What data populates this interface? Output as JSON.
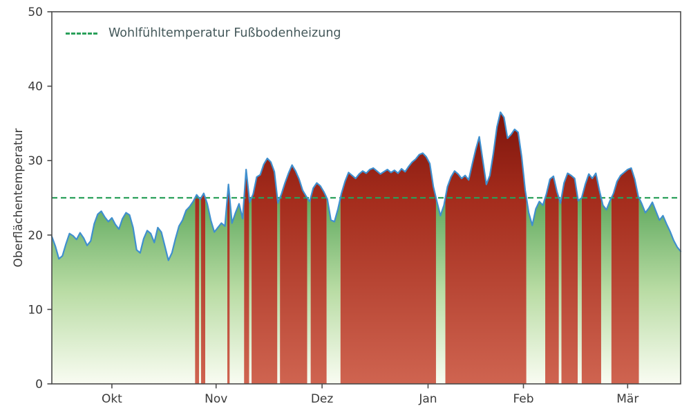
{
  "chart_data": {
    "type": "area",
    "title": "",
    "xlabel": "",
    "ylabel": "Oberflächentemperatur",
    "ylim": [
      0,
      50
    ],
    "yticks": [
      0,
      10,
      20,
      30,
      40,
      50
    ],
    "xlim": [
      0,
      178
    ],
    "x_unit": "day-index (mid-September to mid-March)",
    "grid": false,
    "legend_position": "upper left",
    "month_ticks": [
      {
        "label": "Okt",
        "day": 17
      },
      {
        "label": "Nov",
        "day": 46.5
      },
      {
        "label": "Dez",
        "day": 76.5
      },
      {
        "label": "Jan",
        "day": 106.5
      },
      {
        "label": "Feb",
        "day": 133.5
      },
      {
        "label": "Mär",
        "day": 163
      }
    ],
    "threshold": {
      "value": 25,
      "label": "Wohlfühltemperatur Fußbodenheizung",
      "color": "#2aa05a",
      "style": "dashed"
    },
    "fill_rule": "area filled red where curve >= threshold, green where below; vertical gradient light at bottom",
    "series": [
      {
        "name": "Oberflächentemperatur",
        "values": [
          19.8,
          18.5,
          16.8,
          17.2,
          18.8,
          20.2,
          19.9,
          19.4,
          20.3,
          19.6,
          18.6,
          19.2,
          21.5,
          22.8,
          23.2,
          22.4,
          21.8,
          22.3,
          21.4,
          20.8,
          22.2,
          23.0,
          22.7,
          21.0,
          18.0,
          17.6,
          19.5,
          20.6,
          20.2,
          19.0,
          21.0,
          20.4,
          18.5,
          16.6,
          17.6,
          19.5,
          21.2,
          22.0,
          23.3,
          23.8,
          24.5,
          25.4,
          24.8,
          25.6,
          24.2,
          22.0,
          20.4,
          21.0,
          21.6,
          21.2,
          26.8,
          21.6,
          23.0,
          24.2,
          22.2,
          28.8,
          24.4,
          25.5,
          27.8,
          28.1,
          29.5,
          30.3,
          29.8,
          28.5,
          24.3,
          25.5,
          27.0,
          28.3,
          29.4,
          28.6,
          27.5,
          26.0,
          25.2,
          24.5,
          26.3,
          27.0,
          26.6,
          25.8,
          24.8,
          22.0,
          21.8,
          23.5,
          25.6,
          27.2,
          28.4,
          28.0,
          27.6,
          28.2,
          28.6,
          28.3,
          28.8,
          29.0,
          28.6,
          28.2,
          28.5,
          28.8,
          28.4,
          28.7,
          28.3,
          28.9,
          28.5,
          29.2,
          29.8,
          30.2,
          30.8,
          31.0,
          30.5,
          29.6,
          26.5,
          24.5,
          22.6,
          24.0,
          26.5,
          27.8,
          28.6,
          28.2,
          27.6,
          28.0,
          27.4,
          29.5,
          31.5,
          33.2,
          30.0,
          26.8,
          28.0,
          31.0,
          34.5,
          36.5,
          35.8,
          33.0,
          33.5,
          34.2,
          33.8,
          30.5,
          26.0,
          23.0,
          21.3,
          23.5,
          24.5,
          24.0,
          25.5,
          27.5,
          27.9,
          25.8,
          24.3,
          27.0,
          28.3,
          28.0,
          27.6,
          24.6,
          25.0,
          26.8,
          28.2,
          27.6,
          28.3,
          26.0,
          24.0,
          23.4,
          24.6,
          25.6,
          27.2,
          28.0,
          28.4,
          28.8,
          29.0,
          27.5,
          25.2,
          24.2,
          23.0,
          23.6,
          24.4,
          23.2,
          22.0,
          22.6,
          21.5,
          20.5,
          19.3,
          18.4,
          17.8
        ]
      }
    ],
    "colors": {
      "line": "#3f8fce",
      "threshold": "#2aa05a",
      "frame": "#4a4a4a",
      "tick_text": "#3a3a3a",
      "legend_text": "#44585a",
      "green_gradient": [
        "#0e6e31",
        "#4c9e4f",
        "#b9dca4",
        "#f9fcf2"
      ],
      "green_offsets": [
        0,
        0.45,
        0.75,
        1
      ],
      "red_gradient": [
        "#4a0803",
        "#7d140c",
        "#a42c1c",
        "#cf6450"
      ],
      "red_offsets": [
        0,
        0.27,
        0.5,
        1
      ]
    }
  }
}
